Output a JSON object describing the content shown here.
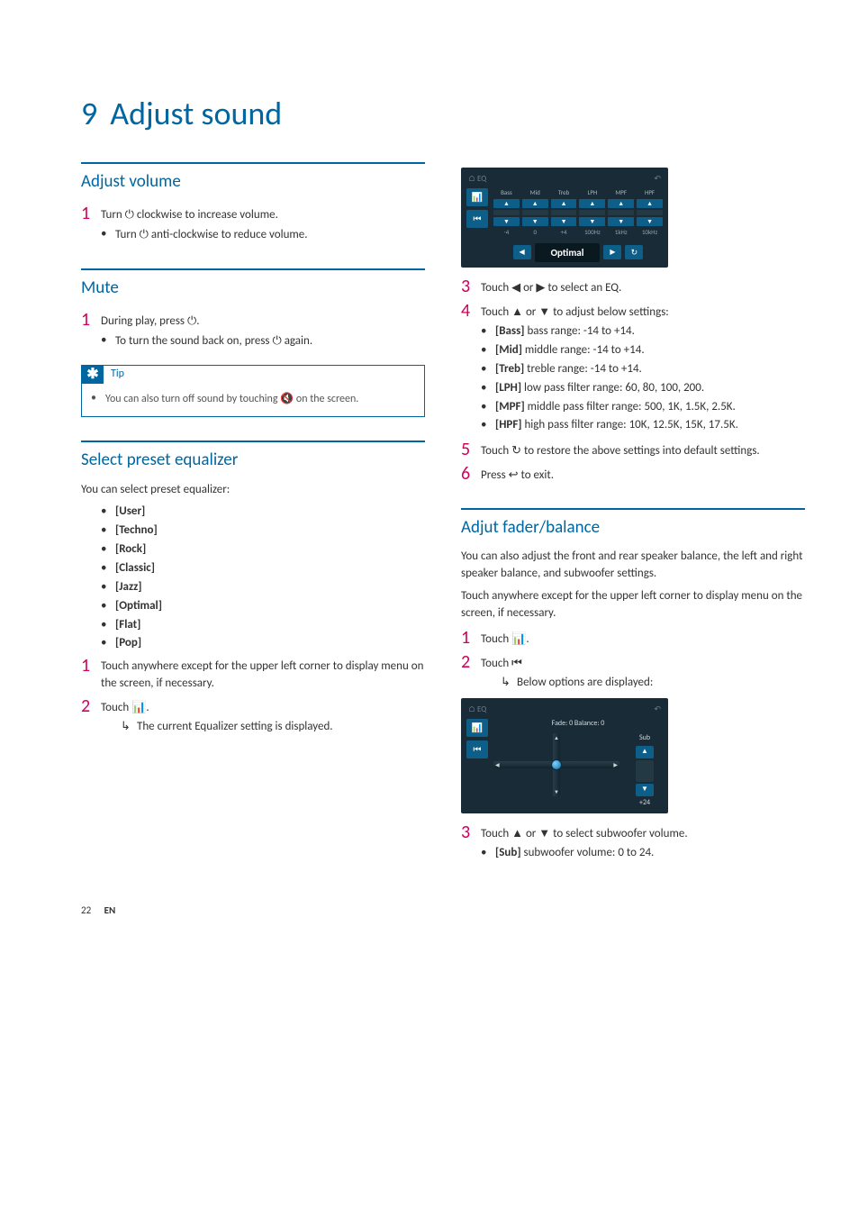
{
  "colors": {
    "accent_blue": "#0066a1",
    "accent_magenta": "#d1005d",
    "shot_bg": "#1a2b38",
    "shot_btn": "#0d5f8a"
  },
  "chapter": {
    "num": "9",
    "title": "Adjust sound"
  },
  "sections": {
    "adjust_volume": {
      "title": "Adjust volume",
      "step1": "Turn ",
      "step1_after": " clockwise to increase volume.",
      "sub1_before": "Turn ",
      "sub1_after": " anti-clockwise to reduce volume."
    },
    "mute": {
      "title": "Mute",
      "step1_before": "During play, press ",
      "step1_after": ".",
      "sub1_before": "To turn the sound back on, press ",
      "sub1_after": " again.",
      "tip_label": "Tip",
      "tip_text_before": "You can also turn off sound by touching ",
      "tip_text_after": " on the screen."
    },
    "preset_eq": {
      "title": "Select preset equalizer",
      "intro": "You can select preset equalizer:",
      "presets": [
        "[User]",
        "[Techno]",
        "[Rock]",
        "[Classic]",
        "[Jazz]",
        "[Optimal]",
        "[Flat]",
        "[Pop]"
      ],
      "step1": "Touch anywhere except for the upper left corner to display menu on the screen, if necessary.",
      "step2_before": "Touch ",
      "step2_after": ".",
      "step2_result": "The current Equalizer setting is displayed."
    },
    "eq_settings": {
      "step3_before": "Touch ",
      "step3_mid": " or ",
      "step3_after": " to select an EQ.",
      "step4_before": "Touch ",
      "step4_mid": " or ",
      "step4_after": " to adjust below settings:",
      "items": [
        {
          "label": "[Bass]",
          "text": " bass range: -14 to +14."
        },
        {
          "label": "[Mid]",
          "text": " middle range: -14 to +14."
        },
        {
          "label": "[Treb]",
          "text": " treble range: -14 to +14."
        },
        {
          "label": "[LPH]",
          "text": " low pass filter range: 60, 80, 100, 200."
        },
        {
          "label": "[MPF]",
          "text": " middle pass filter range: 500, 1K, 1.5K, 2.5K."
        },
        {
          "label": "[HPF]",
          "text": " high pass filter range: 10K, 12.5K, 15K, 17.5K."
        }
      ],
      "step5_before": "Touch ",
      "step5_after": " to restore the above settings into default settings.",
      "step6_before": "Press ",
      "step6_after": " to exit."
    },
    "fader": {
      "title": "Adjut fader/balance",
      "intro1": "You can also adjust the front and rear speaker balance, the left and right speaker balance, and subwoofer settings.",
      "intro2": "Touch anywhere except for the upper left corner to display menu on the screen, if necessary.",
      "step1_before": "Touch ",
      "step1_after": ".",
      "step2_before": "Touch ",
      "step2_after": "",
      "step2_result": "Below options are displayed:",
      "step3_before": "Touch ",
      "step3_mid": " or ",
      "step3_after": " to select subwoofer volume.",
      "step3_item_label": "[Sub]",
      "step3_item_text": " subwoofer volume: 0 to 24."
    }
  },
  "shot_eq": {
    "top_left": "EQ",
    "cols": [
      {
        "lbl": "Bass",
        "val": "-4"
      },
      {
        "lbl": "Mid",
        "val": "0"
      },
      {
        "lbl": "Treb",
        "val": "+4"
      },
      {
        "lbl": "LPH",
        "val": "100Hz"
      },
      {
        "lbl": "MPF",
        "val": "1kHz"
      },
      {
        "lbl": "HPF",
        "val": "10kHz"
      }
    ],
    "optimal": "Optimal"
  },
  "shot_fader": {
    "top_left": "EQ",
    "fader_label": "Fade: 0 Balance: 0",
    "sub_label": "Sub",
    "sub_val": "+24"
  },
  "footer": {
    "page": "22",
    "lang": "EN"
  },
  "glyphs": {
    "power": "⏻",
    "mute_speaker": "🔇",
    "left_tri": "◀",
    "right_tri": "▶",
    "up_tri": "▲",
    "down_tri": "▼",
    "refresh": "↻",
    "back": "↩",
    "eq_bars": "📊",
    "fader_skip": "⏮",
    "home": "⌂",
    "back_arrow": "↶",
    "result_arrow": "↳"
  }
}
